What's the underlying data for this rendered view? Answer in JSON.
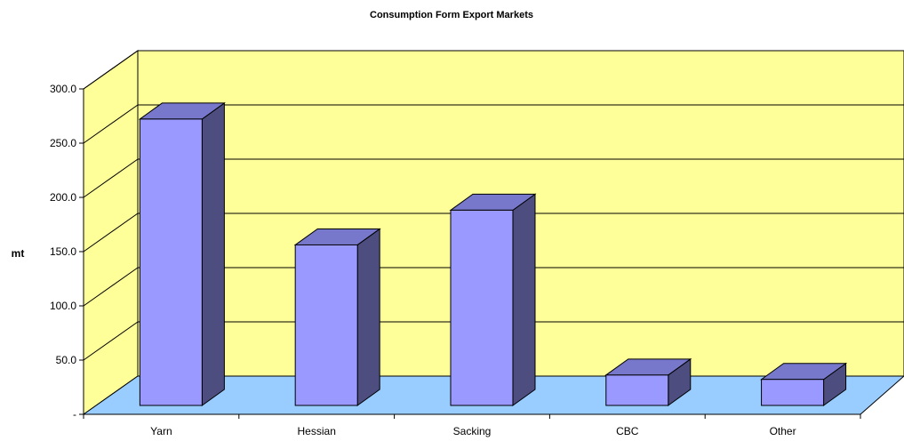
{
  "chart_data": {
    "type": "bar",
    "title": "Consumption Form Export Markets",
    "xlabel": "",
    "ylabel": "mt",
    "categories": [
      "Yarn",
      "Hessian",
      "Sacking",
      "CBC",
      "Other"
    ],
    "values": [
      264,
      148,
      180,
      28,
      24
    ],
    "ylim": [
      0,
      300
    ],
    "yticks": [
      0,
      50,
      100,
      150,
      200,
      250,
      300
    ],
    "ytick_labels": [
      "-",
      "50.0",
      "100.0",
      "150.0",
      "200.0",
      "250.0",
      "300.0"
    ],
    "grid": true,
    "legend": "none",
    "colors": {
      "wall": "#FFFF99",
      "floor": "#99CCFF",
      "bar_front": "#9999FF",
      "bar_top": "#7777CC",
      "bar_side": "#4D4D80",
      "outline": "#000000"
    }
  }
}
